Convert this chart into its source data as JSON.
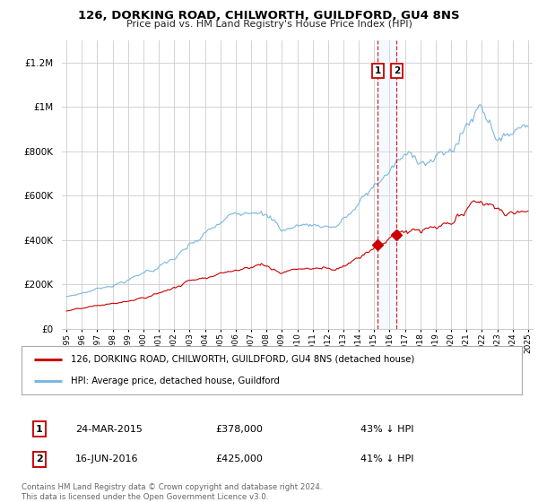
{
  "title": "126, DORKING ROAD, CHILWORTH, GUILDFORD, GU4 8NS",
  "subtitle": "Price paid vs. HM Land Registry's House Price Index (HPI)",
  "ylim": [
    0,
    1300000
  ],
  "yticks": [
    0,
    200000,
    400000,
    600000,
    800000,
    1000000,
    1200000
  ],
  "ytick_labels": [
    "£0",
    "£200K",
    "£400K",
    "£600K",
    "£800K",
    "£1M",
    "£1.2M"
  ],
  "sale1_year": 2015.22,
  "sale1_price": 378000,
  "sale1_label": "1",
  "sale1_date": "24-MAR-2015",
  "sale1_pct": "43% ↓ HPI",
  "sale2_year": 2016.46,
  "sale2_price": 425000,
  "sale2_label": "2",
  "sale2_date": "16-JUN-2016",
  "sale2_pct": "41% ↓ HPI",
  "hpi_color": "#7ab8e0",
  "price_color": "#cc0000",
  "dashed_line_color": "#cc0000",
  "shade_color": "#ddeeff",
  "grid_color": "#cccccc",
  "bg_color": "#ffffff",
  "legend_label_price": "126, DORKING ROAD, CHILWORTH, GUILDFORD, GU4 8NS (detached house)",
  "legend_label_hpi": "HPI: Average price, detached house, Guildford",
  "footer": "Contains HM Land Registry data © Crown copyright and database right 2024.\nThis data is licensed under the Open Government Licence v3.0."
}
